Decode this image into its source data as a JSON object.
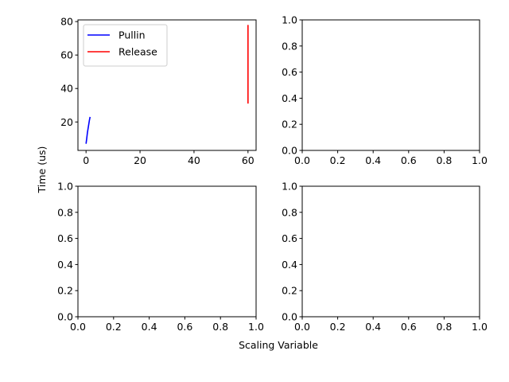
{
  "chart_data": {
    "type": "line",
    "xlabel": "Scaling Variable",
    "ylabel": "Time (us)",
    "subplots": [
      {
        "position": "top-left",
        "xlim": [
          -3,
          63
        ],
        "ylim": [
          3,
          81
        ],
        "xticks": [
          0,
          20,
          40,
          60
        ],
        "xtick_labels": [
          "0",
          "20",
          "40",
          "60"
        ],
        "yticks": [
          20,
          40,
          60,
          80
        ],
        "ytick_labels": [
          "20",
          "40",
          "60",
          "80"
        ],
        "legend": "top-left",
        "series": [
          {
            "name": "Pullin",
            "color": "#0000ff",
            "x": [
              0,
              0.25,
              0.5,
              0.75,
              1.0,
              1.25,
              1.5
            ],
            "y": [
              7,
              10,
              13.5,
              16,
              18.5,
              21,
              23
            ]
          },
          {
            "name": "Release",
            "color": "#ff0000",
            "x": [
              60,
              60,
              60,
              60,
              60
            ],
            "y": [
              31,
              43,
              55,
              66,
              78
            ]
          }
        ]
      },
      {
        "position": "top-right",
        "xlim": [
          0,
          1
        ],
        "ylim": [
          0,
          1
        ],
        "xticks": [
          0,
          0.2,
          0.4,
          0.6,
          0.8,
          1.0
        ],
        "xtick_labels": [
          "0.0",
          "0.2",
          "0.4",
          "0.6",
          "0.8",
          "1.0"
        ],
        "yticks": [
          0,
          0.2,
          0.4,
          0.6,
          0.8,
          1.0
        ],
        "ytick_labels": [
          "0.0",
          "0.2",
          "0.4",
          "0.6",
          "0.8",
          "1.0"
        ],
        "series": []
      },
      {
        "position": "bottom-left",
        "xlim": [
          0,
          1
        ],
        "ylim": [
          0,
          1
        ],
        "xticks": [
          0,
          0.2,
          0.4,
          0.6,
          0.8,
          1.0
        ],
        "xtick_labels": [
          "0.0",
          "0.2",
          "0.4",
          "0.6",
          "0.8",
          "1.0"
        ],
        "yticks": [
          0,
          0.2,
          0.4,
          0.6,
          0.8,
          1.0
        ],
        "ytick_labels": [
          "0.0",
          "0.2",
          "0.4",
          "0.6",
          "0.8",
          "1.0"
        ],
        "series": []
      },
      {
        "position": "bottom-right",
        "xlim": [
          0,
          1
        ],
        "ylim": [
          0,
          1
        ],
        "xticks": [
          0,
          0.2,
          0.4,
          0.6,
          0.8,
          1.0
        ],
        "xtick_labels": [
          "0.0",
          "0.2",
          "0.4",
          "0.6",
          "0.8",
          "1.0"
        ],
        "yticks": [
          0,
          0.2,
          0.4,
          0.6,
          0.8,
          1.0
        ],
        "ytick_labels": [
          "0.0",
          "0.2",
          "0.4",
          "0.6",
          "0.8",
          "1.0"
        ],
        "series": []
      }
    ]
  }
}
